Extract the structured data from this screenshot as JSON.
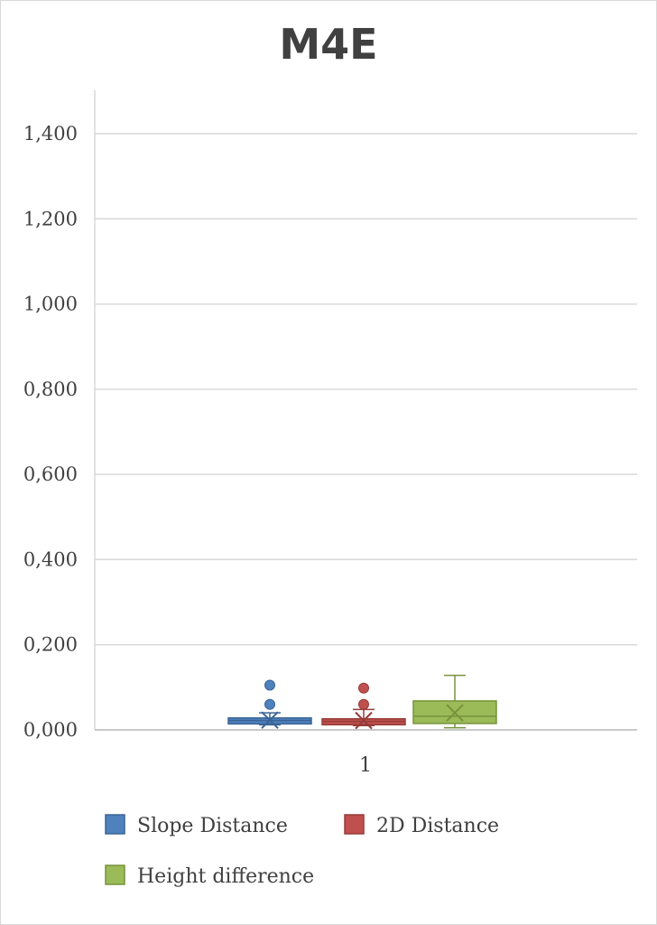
{
  "chart_data": {
    "type": "box",
    "title": "M4E",
    "categories": [
      "1"
    ],
    "ylim": [
      0,
      1.5
    ],
    "yticks": [
      0.0,
      0.2,
      0.4,
      0.6,
      0.8,
      1.0,
      1.2,
      1.4
    ],
    "ytick_labels": [
      "0,000",
      "0,200",
      "0,400",
      "0,600",
      "0,800",
      "1,000",
      "1,200",
      "1,400"
    ],
    "grid": true,
    "legend_position": "bottom",
    "series": [
      {
        "name": "Slope Distance",
        "color": "#4f81bd",
        "stroke": "#3a6496",
        "min": 0.012,
        "q1": 0.014,
        "median": 0.022,
        "q3": 0.028,
        "max": 0.04,
        "mean": 0.023,
        "outliers": [
          0.06,
          0.105
        ]
      },
      {
        "name": "2D Distance",
        "color": "#c0504d",
        "stroke": "#963c39",
        "min": 0.01,
        "q1": 0.012,
        "median": 0.02,
        "q3": 0.026,
        "max": 0.048,
        "mean": 0.022,
        "outliers": [
          0.06,
          0.098
        ]
      },
      {
        "name": "Height difference",
        "color": "#9bbb59",
        "stroke": "#77933c",
        "min": 0.005,
        "q1": 0.015,
        "median": 0.032,
        "q3": 0.068,
        "max": 0.128,
        "mean": 0.04,
        "outliers": []
      }
    ]
  }
}
